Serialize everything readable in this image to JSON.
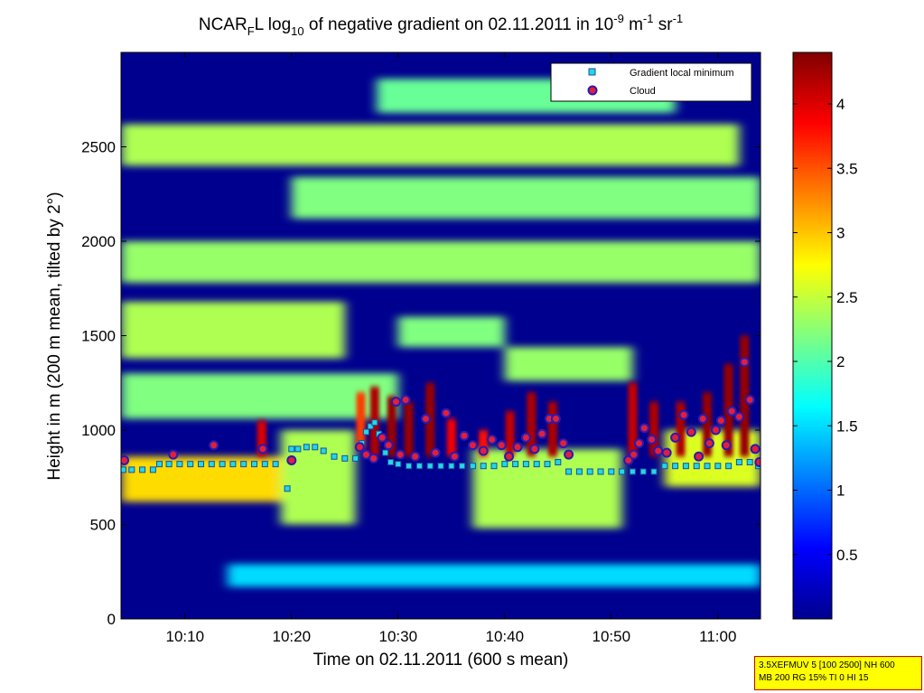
{
  "chart_data": {
    "type": "heatmap",
    "title": {
      "prefix": "NCAR",
      "prefix_sub": "F",
      "middle1": "L log",
      "log_sub": "10",
      "middle2": " of negative gradient on 02.11.2011 in 10",
      "exp1": "-9",
      "unit1": " m",
      "exp2": "-1",
      "unit2": " sr",
      "exp3": "-1"
    },
    "xlabel": "Time on 02.11.2011 (600 s mean)",
    "ylabel": "Height in m (200 m mean, tilted by 2°)",
    "x_range_min": [
      4,
      64
    ],
    "y_range_m": [
      0,
      3000
    ],
    "x_ticks": [
      {
        "value": 10,
        "label": "10:10"
      },
      {
        "value": 20,
        "label": "10:20"
      },
      {
        "value": 30,
        "label": "10:30"
      },
      {
        "value": 40,
        "label": "10:40"
      },
      {
        "value": 50,
        "label": "10:50"
      },
      {
        "value": 60,
        "label": "11:00"
      }
    ],
    "y_ticks": [
      {
        "value": 0,
        "label": "0"
      },
      {
        "value": 500,
        "label": "500"
      },
      {
        "value": 1000,
        "label": "1000"
      },
      {
        "value": 1500,
        "label": "1500"
      },
      {
        "value": 2000,
        "label": "2000"
      },
      {
        "value": 2500,
        "label": "2500"
      }
    ],
    "colorbar": {
      "range": [
        0,
        4.4
      ],
      "colormap": "jet",
      "ticks": [
        {
          "value": 0.5,
          "label": "0.5"
        },
        {
          "value": 1,
          "label": "1"
        },
        {
          "value": 1.5,
          "label": "1.5"
        },
        {
          "value": 2,
          "label": "2"
        },
        {
          "value": 2.5,
          "label": "2.5"
        },
        {
          "value": 3,
          "label": "3"
        },
        {
          "value": 3.5,
          "label": "3.5"
        },
        {
          "value": 4,
          "label": "4"
        }
      ]
    },
    "field_bands": [
      {
        "y0": 170,
        "y1": 290,
        "value": 1.5,
        "t0": 14,
        "t1": 64
      },
      {
        "y0": 620,
        "y1": 860,
        "value": 2.9,
        "t0": 4,
        "t1": 26
      },
      {
        "y0": 500,
        "y1": 1000,
        "value": 2.4,
        "t0": 19,
        "t1": 26
      },
      {
        "y0": 480,
        "y1": 900,
        "value": 2.4,
        "t0": 37,
        "t1": 51
      },
      {
        "y0": 700,
        "y1": 1000,
        "value": 2.6,
        "t0": 55,
        "t1": 64
      },
      {
        "y0": 1060,
        "y1": 1300,
        "value": 2.2,
        "t0": 4,
        "t1": 30
      },
      {
        "y0": 1260,
        "y1": 1440,
        "value": 2.3,
        "t0": 40,
        "t1": 52
      },
      {
        "y0": 1380,
        "y1": 1680,
        "value": 2.4,
        "t0": 4,
        "t1": 25
      },
      {
        "y0": 1440,
        "y1": 1600,
        "value": 2.2,
        "t0": 30,
        "t1": 40
      },
      {
        "y0": 1780,
        "y1": 2000,
        "value": 2.3,
        "t0": 4,
        "t1": 64
      },
      {
        "y0": 2120,
        "y1": 2340,
        "value": 2.2,
        "t0": 20,
        "t1": 64
      },
      {
        "y0": 2400,
        "y1": 2620,
        "value": 2.4,
        "t0": 4,
        "t1": 62
      },
      {
        "y0": 2680,
        "y1": 2860,
        "value": 2.1,
        "t0": 28,
        "t1": 56
      }
    ],
    "field_spikes": [
      {
        "t": 17.2,
        "y0": 860,
        "y1": 1050,
        "value": 4.0
      },
      {
        "t": 26.5,
        "y0": 900,
        "y1": 1200,
        "value": 3.6
      },
      {
        "t": 27.8,
        "y0": 860,
        "y1": 1230,
        "value": 4.2
      },
      {
        "t": 29.4,
        "y0": 860,
        "y1": 1180,
        "value": 4.3
      },
      {
        "t": 31.0,
        "y0": 860,
        "y1": 1150,
        "value": 4.3
      },
      {
        "t": 33.0,
        "y0": 860,
        "y1": 1250,
        "value": 4.3
      },
      {
        "t": 35.0,
        "y0": 860,
        "y1": 1060,
        "value": 3.9
      },
      {
        "t": 38.0,
        "y0": 860,
        "y1": 1000,
        "value": 3.8
      },
      {
        "t": 40.5,
        "y0": 860,
        "y1": 1100,
        "value": 4.1
      },
      {
        "t": 42.5,
        "y0": 860,
        "y1": 1200,
        "value": 4.2
      },
      {
        "t": 44.5,
        "y0": 860,
        "y1": 1150,
        "value": 4.2
      },
      {
        "t": 52.0,
        "y0": 860,
        "y1": 1250,
        "value": 4.1
      },
      {
        "t": 54.0,
        "y0": 860,
        "y1": 1150,
        "value": 4.2
      },
      {
        "t": 56.5,
        "y0": 860,
        "y1": 1150,
        "value": 4.2
      },
      {
        "t": 59.0,
        "y0": 860,
        "y1": 1200,
        "value": 4.3
      },
      {
        "t": 61.0,
        "y0": 860,
        "y1": 1350,
        "value": 4.3
      },
      {
        "t": 62.5,
        "y0": 860,
        "y1": 1500,
        "value": 4.3
      }
    ],
    "series": [
      {
        "name": "Gradient local minimum",
        "marker": "square",
        "points": [
          [
            4.2,
            790
          ],
          [
            5.0,
            790
          ],
          [
            6.0,
            790
          ],
          [
            7.0,
            790
          ],
          [
            7.6,
            820
          ],
          [
            8.5,
            820
          ],
          [
            9.5,
            820
          ],
          [
            10.5,
            820
          ],
          [
            11.5,
            820
          ],
          [
            12.5,
            820
          ],
          [
            13.5,
            820
          ],
          [
            14.5,
            820
          ],
          [
            15.5,
            820
          ],
          [
            16.5,
            820
          ],
          [
            17.5,
            820
          ],
          [
            18.5,
            820
          ],
          [
            19.6,
            690
          ],
          [
            20.0,
            900
          ],
          [
            20.6,
            900
          ],
          [
            21.4,
            910
          ],
          [
            22.2,
            910
          ],
          [
            23.0,
            890
          ],
          [
            24.0,
            860
          ],
          [
            25.0,
            850
          ],
          [
            26.0,
            850
          ],
          [
            26.6,
            930
          ],
          [
            27.0,
            990
          ],
          [
            27.4,
            1020
          ],
          [
            27.8,
            1040
          ],
          [
            28.2,
            980
          ],
          [
            28.8,
            880
          ],
          [
            29.3,
            830
          ],
          [
            30.0,
            820
          ],
          [
            31.0,
            810
          ],
          [
            32.0,
            810
          ],
          [
            33.0,
            810
          ],
          [
            34.0,
            810
          ],
          [
            35.0,
            810
          ],
          [
            36.0,
            810
          ],
          [
            37.0,
            810
          ],
          [
            38.0,
            810
          ],
          [
            39.0,
            810
          ],
          [
            40.0,
            820
          ],
          [
            41.0,
            820
          ],
          [
            42.0,
            820
          ],
          [
            43.0,
            820
          ],
          [
            44.0,
            820
          ],
          [
            45.0,
            830
          ],
          [
            46.0,
            780
          ],
          [
            47.0,
            780
          ],
          [
            48.0,
            780
          ],
          [
            49.0,
            780
          ],
          [
            50.0,
            780
          ],
          [
            51.0,
            780
          ],
          [
            52.0,
            780
          ],
          [
            53.0,
            780
          ],
          [
            54.0,
            780
          ],
          [
            55.0,
            810
          ],
          [
            56.0,
            810
          ],
          [
            57.0,
            810
          ],
          [
            58.0,
            810
          ],
          [
            59.0,
            810
          ],
          [
            60.0,
            810
          ],
          [
            61.0,
            810
          ],
          [
            62.0,
            830
          ],
          [
            63.0,
            830
          ],
          [
            63.8,
            810
          ]
        ]
      },
      {
        "name": "Cloud",
        "marker": "circle",
        "points": [
          [
            4.3,
            840
          ],
          [
            8.9,
            870
          ],
          [
            12.7,
            920
          ],
          [
            17.3,
            900
          ],
          [
            20.0,
            840
          ],
          [
            26.4,
            910
          ],
          [
            27.0,
            870
          ],
          [
            27.7,
            850
          ],
          [
            28.5,
            960
          ],
          [
            29.1,
            920
          ],
          [
            29.8,
            1150
          ],
          [
            30.2,
            870
          ],
          [
            30.7,
            1160
          ],
          [
            31.6,
            860
          ],
          [
            32.6,
            1060
          ],
          [
            33.5,
            880
          ],
          [
            34.5,
            1090
          ],
          [
            35.3,
            860
          ],
          [
            36.2,
            970
          ],
          [
            37.0,
            920
          ],
          [
            38.0,
            890
          ],
          [
            38.8,
            950
          ],
          [
            39.7,
            920
          ],
          [
            40.4,
            860
          ],
          [
            41.2,
            910
          ],
          [
            42.0,
            960
          ],
          [
            42.8,
            900
          ],
          [
            43.5,
            980
          ],
          [
            44.2,
            1060
          ],
          [
            44.8,
            1060
          ],
          [
            45.5,
            930
          ],
          [
            46.0,
            870
          ],
          [
            51.6,
            840
          ],
          [
            52.1,
            870
          ],
          [
            52.6,
            930
          ],
          [
            53.1,
            1010
          ],
          [
            53.8,
            950
          ],
          [
            54.4,
            890
          ],
          [
            55.2,
            880
          ],
          [
            56.0,
            960
          ],
          [
            56.8,
            1080
          ],
          [
            57.5,
            990
          ],
          [
            58.2,
            860
          ],
          [
            58.6,
            1060
          ],
          [
            59.2,
            930
          ],
          [
            59.8,
            1000
          ],
          [
            60.3,
            1050
          ],
          [
            60.8,
            920
          ],
          [
            61.3,
            1100
          ],
          [
            62.0,
            1070
          ],
          [
            62.5,
            1360
          ],
          [
            63.0,
            1160
          ],
          [
            63.5,
            900
          ],
          [
            63.9,
            830
          ]
        ]
      }
    ],
    "legend_position": "top-right"
  },
  "info_box": {
    "line1": "3.5XEFMUV 5 [100 2500] NH 600",
    "line2": "MB 200 RG 15% TI 0 HI 15"
  },
  "colors": {
    "square_fill": "#22d8e6",
    "square_edge": "#1b4ea0",
    "circle_fill": "#e0203a",
    "circle_edge": "#2a1ab0"
  }
}
